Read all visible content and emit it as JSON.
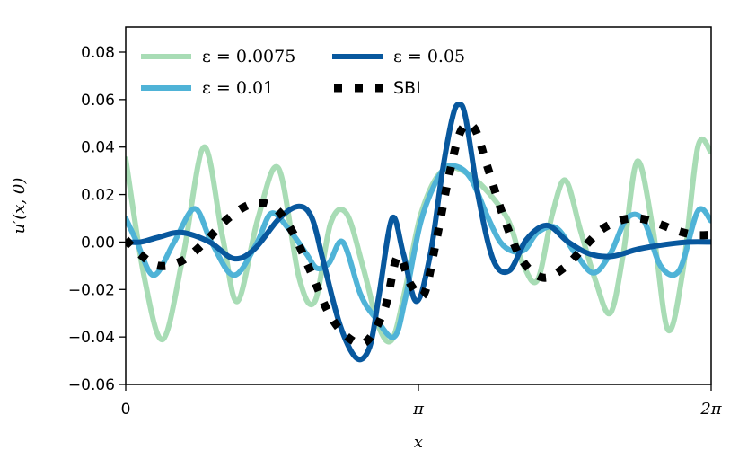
{
  "chart_data": {
    "type": "line",
    "xlabel": "x",
    "ylabel": "u′(x, 0)",
    "xlim": [
      0,
      6.283185
    ],
    "ylim": [
      -0.06,
      0.09
    ],
    "xticks": [
      {
        "value": 0,
        "label": "0"
      },
      {
        "value": 3.141593,
        "label": "π"
      },
      {
        "value": 6.283185,
        "label": "2π"
      }
    ],
    "yticks": [
      {
        "value": -0.06,
        "label": "−0.06"
      },
      {
        "value": -0.04,
        "label": "−0.04"
      },
      {
        "value": -0.02,
        "label": "−0.02"
      },
      {
        "value": 0.0,
        "label": "0.00"
      },
      {
        "value": 0.02,
        "label": "0.02"
      },
      {
        "value": 0.04,
        "label": "0.04"
      },
      {
        "value": 0.06,
        "label": "0.06"
      },
      {
        "value": 0.08,
        "label": "0.08"
      }
    ],
    "grid": false,
    "legend_position": "top-left",
    "series": [
      {
        "name": "ε = 0.0075",
        "color": "#a8dcb5",
        "style": "solid",
        "x": [
          0.0,
          0.2,
          0.4,
          0.62,
          0.84,
          1.04,
          1.2,
          1.42,
          1.64,
          1.86,
          2.03,
          2.2,
          2.37,
          2.55,
          2.72,
          2.86,
          3.0,
          3.17,
          3.4,
          3.7,
          4.08,
          4.26,
          4.42,
          4.58,
          4.72,
          4.88,
          5.04,
          5.2,
          5.34,
          5.49,
          5.66,
          5.82,
          5.98,
          6.14,
          6.28
        ],
        "y": [
          0.035,
          -0.015,
          -0.041,
          -0.005,
          0.04,
          0.002,
          -0.025,
          0.01,
          0.031,
          -0.015,
          -0.025,
          0.008,
          0.012,
          -0.011,
          -0.036,
          -0.041,
          -0.02,
          0.012,
          0.03,
          0.028,
          0.011,
          -0.009,
          -0.016,
          0.012,
          0.026,
          0.005,
          -0.016,
          -0.03,
          -0.005,
          0.034,
          0.005,
          -0.037,
          -0.012,
          0.04,
          0.038
        ]
      },
      {
        "name": "ε = 0.01",
        "color": "#4fb3d7",
        "style": "solid",
        "x": [
          0.0,
          0.12,
          0.3,
          0.52,
          0.74,
          0.92,
          1.16,
          1.4,
          1.56,
          1.74,
          1.94,
          2.05,
          2.18,
          2.33,
          2.52,
          2.68,
          2.88,
          3.0,
          3.17,
          3.38,
          3.53,
          3.7,
          3.88,
          4.02,
          4.16,
          4.29,
          4.42,
          4.62,
          4.83,
          5.02,
          5.2,
          5.38,
          5.56,
          5.74,
          5.94,
          6.14,
          6.28
        ],
        "y": [
          0.01,
          0.0,
          -0.014,
          0.0,
          0.014,
          0.0,
          -0.014,
          -0.001,
          0.012,
          0.006,
          -0.005,
          -0.011,
          -0.009,
          0.0,
          -0.022,
          -0.032,
          -0.04,
          -0.024,
          0.009,
          0.029,
          0.032,
          0.027,
          0.011,
          0.0,
          -0.004,
          -0.003,
          0.004,
          0.006,
          -0.005,
          -0.013,
          -0.005,
          0.01,
          0.009,
          -0.01,
          -0.012,
          0.013,
          0.009
        ]
      },
      {
        "name": "ε = 0.05",
        "color": "#08589e",
        "style": "solid",
        "x": [
          0.0,
          0.16,
          0.35,
          0.6,
          0.9,
          1.16,
          1.38,
          1.65,
          1.86,
          2.0,
          2.12,
          2.3,
          2.48,
          2.62,
          2.72,
          2.86,
          2.98,
          3.12,
          3.27,
          3.4,
          3.51,
          3.58,
          3.65,
          3.79,
          3.95,
          4.12,
          4.3,
          4.52,
          4.75,
          4.98,
          5.22,
          5.5,
          5.8,
          6.05,
          6.28
        ],
        "y": [
          0.0,
          0.0,
          0.002,
          0.004,
          0.0,
          -0.007,
          -0.003,
          0.01,
          0.015,
          0.01,
          -0.008,
          -0.035,
          -0.049,
          -0.044,
          -0.022,
          0.01,
          -0.005,
          -0.025,
          -0.005,
          0.03,
          0.053,
          0.058,
          0.052,
          0.018,
          -0.008,
          -0.012,
          0.001,
          0.007,
          0.0,
          -0.005,
          -0.006,
          -0.003,
          -0.001,
          0.0,
          0.0
        ]
      },
      {
        "name": "SBI",
        "color": "#000000",
        "style": "dotted",
        "x": [
          0.0,
          0.15,
          0.35,
          0.6,
          0.85,
          1.1,
          1.35,
          1.58,
          1.78,
          1.98,
          2.18,
          2.38,
          2.58,
          2.78,
          2.92,
          3.06,
          3.2,
          3.33,
          3.47,
          3.6,
          3.74,
          3.88,
          4.06,
          4.26,
          4.48,
          4.7,
          4.9,
          5.1,
          5.3,
          5.5,
          5.7,
          5.9,
          6.1,
          6.28
        ],
        "y": [
          0.001,
          -0.005,
          -0.01,
          -0.008,
          0.0,
          0.01,
          0.016,
          0.015,
          0.005,
          -0.012,
          -0.03,
          -0.04,
          -0.042,
          -0.028,
          -0.006,
          -0.018,
          -0.022,
          0.0,
          0.028,
          0.047,
          0.048,
          0.032,
          0.01,
          -0.008,
          -0.015,
          -0.011,
          -0.003,
          0.005,
          0.009,
          0.01,
          0.008,
          0.005,
          0.003,
          0.003
        ]
      }
    ]
  }
}
